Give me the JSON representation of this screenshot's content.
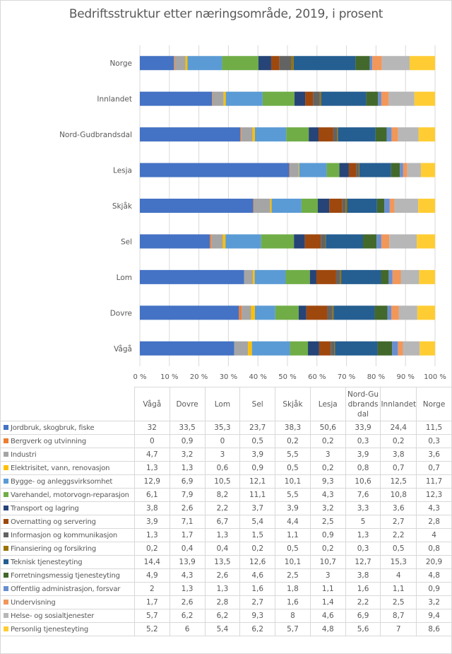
{
  "chart_data": {
    "type": "bar",
    "orientation": "horizontal",
    "stacked": "percent",
    "title": "Bedriftsstruktur etter næringsområde, 2019, i prosent",
    "xlabel": "",
    "ylabel": "",
    "xlim": [
      0,
      100
    ],
    "grid": true,
    "legend": "in-table",
    "x_ticks": [
      "0 %",
      "10 %",
      "20 %",
      "30 %",
      "40 %",
      "50 %",
      "60 %",
      "70 %",
      "80 %",
      "90 %",
      "100 %"
    ],
    "categories": [
      "Vågå",
      "Dovre",
      "Lom",
      "Sel",
      "Skjåk",
      "Lesja",
      "Nord-Gudbrandsdal",
      "Innlandet",
      "Norge"
    ],
    "table_headers": [
      "Vågå",
      "Dovre",
      "Lom",
      "Sel",
      "Skjåk",
      "Lesja",
      "Nord-Gudbrandsdal",
      "Innlandet",
      "Norge"
    ],
    "series": [
      {
        "name": "Jordbruk, skogbruk, fiske",
        "color": "#4472c4",
        "values": [
          32,
          33.5,
          35.3,
          23.7,
          38.3,
          50.6,
          33.9,
          24.4,
          11.5
        ],
        "labels": [
          "32",
          "33,5",
          "35,3",
          "23,7",
          "38,3",
          "50,6",
          "33,9",
          "24,4",
          "11,5"
        ]
      },
      {
        "name": "Bergverk og utvinning",
        "color": "#ed7d31",
        "values": [
          0,
          0.9,
          0,
          0.5,
          0.2,
          0.2,
          0.3,
          0.2,
          0.3
        ],
        "labels": [
          "0",
          "0,9",
          "0",
          "0,5",
          "0,2",
          "0,2",
          "0,3",
          "0,2",
          "0,3"
        ]
      },
      {
        "name": "Industri",
        "color": "#a5a5a5",
        "values": [
          4.7,
          3.2,
          3,
          3.9,
          5.5,
          3,
          3.9,
          3.8,
          3.6
        ],
        "labels": [
          "4,7",
          "3,2",
          "3",
          "3,9",
          "5,5",
          "3",
          "3,9",
          "3,8",
          "3,6"
        ]
      },
      {
        "name": "Elektrisitet, vann, renovasjon",
        "color": "#ffc000",
        "values": [
          1.3,
          1.3,
          0.6,
          0.9,
          0.5,
          0.2,
          0.8,
          0.7,
          0.7
        ],
        "labels": [
          "1,3",
          "1,3",
          "0,6",
          "0,9",
          "0,5",
          "0,2",
          "0,8",
          "0,7",
          "0,7"
        ]
      },
      {
        "name": "Bygge- og anleggsvirksomhet",
        "color": "#5b9bd5",
        "values": [
          12.9,
          6.9,
          10.5,
          12.1,
          10.1,
          9.3,
          10.6,
          12.5,
          11.7
        ],
        "labels": [
          "12,9",
          "6,9",
          "10,5",
          "12,1",
          "10,1",
          "9,3",
          "10,6",
          "12,5",
          "11,7"
        ]
      },
      {
        "name": "Varehandel, motorvogn-reparasjon",
        "color": "#70ad47",
        "values": [
          6.1,
          7.9,
          8.2,
          11.1,
          5.5,
          4.3,
          7.6,
          10.8,
          12.3
        ],
        "labels": [
          "6,1",
          "7,9",
          "8,2",
          "11,1",
          "5,5",
          "4,3",
          "7,6",
          "10,8",
          "12,3"
        ]
      },
      {
        "name": "Transport og lagring",
        "color": "#264478",
        "values": [
          3.8,
          2.6,
          2.2,
          3.7,
          3.9,
          3.2,
          3.3,
          3.6,
          4.3
        ],
        "labels": [
          "3,8",
          "2,6",
          "2,2",
          "3,7",
          "3,9",
          "3,2",
          "3,3",
          "3,6",
          "4,3"
        ]
      },
      {
        "name": "Overnatting og servering",
        "color": "#9e480e",
        "values": [
          3.9,
          7.1,
          6.7,
          5.4,
          4.4,
          2.5,
          5,
          2.7,
          2.8
        ],
        "labels": [
          "3,9",
          "7,1",
          "6,7",
          "5,4",
          "4,4",
          "2,5",
          "5",
          "2,7",
          "2,8"
        ]
      },
      {
        "name": "Informasjon og kommunikasjon",
        "color": "#636363",
        "values": [
          1.3,
          1.7,
          1.3,
          1.5,
          1.1,
          0.9,
          1.3,
          2.2,
          4
        ],
        "labels": [
          "1,3",
          "1,7",
          "1,3",
          "1,5",
          "1,1",
          "0,9",
          "1,3",
          "2,2",
          "4"
        ]
      },
      {
        "name": "Finansiering og forsikring",
        "color": "#997300",
        "values": [
          0.2,
          0.4,
          0.4,
          0.2,
          0.5,
          0.2,
          0.3,
          0.5,
          0.8
        ],
        "labels": [
          "0,2",
          "0,4",
          "0,4",
          "0,2",
          "0,5",
          "0,2",
          "0,3",
          "0,5",
          "0,8"
        ]
      },
      {
        "name": "Teknisk tjenesteyting",
        "color": "#255e91",
        "values": [
          14.4,
          13.9,
          13.5,
          12.6,
          10.1,
          10.7,
          12.7,
          15.3,
          20.9
        ],
        "labels": [
          "14,4",
          "13,9",
          "13,5",
          "12,6",
          "10,1",
          "10,7",
          "12,7",
          "15,3",
          "20,9"
        ]
      },
      {
        "name": "Forretningsmessig tjenesteyting",
        "color": "#43682b",
        "values": [
          4.9,
          4.3,
          2.6,
          4.6,
          2.5,
          3,
          3.8,
          4,
          4.8
        ],
        "labels": [
          "4,9",
          "4,3",
          "2,6",
          "4,6",
          "2,5",
          "3",
          "3,8",
          "4",
          "4,8"
        ]
      },
      {
        "name": "Offentlig administrasjon, forsvar",
        "color": "#698ed0",
        "values": [
          2,
          1.3,
          1.3,
          1.6,
          1.8,
          1.1,
          1.6,
          1.1,
          0.9
        ],
        "labels": [
          "2",
          "1,3",
          "1,3",
          "1,6",
          "1,8",
          "1,1",
          "1,6",
          "1,1",
          "0,9"
        ]
      },
      {
        "name": "Undervisning",
        "color": "#f1975a",
        "values": [
          1.7,
          2.6,
          2.8,
          2.7,
          1.6,
          1.4,
          2.2,
          2.5,
          3.2
        ],
        "labels": [
          "1,7",
          "2,6",
          "2,8",
          "2,7",
          "1,6",
          "1,4",
          "2,2",
          "2,5",
          "3,2"
        ]
      },
      {
        "name": "Helse- og sosialtjenester",
        "color": "#b7b7b7",
        "values": [
          5.7,
          6.2,
          6.2,
          9.3,
          8,
          4.6,
          6.9,
          8.7,
          9.4
        ],
        "labels": [
          "5,7",
          "6,2",
          "6,2",
          "9,3",
          "8",
          "4,6",
          "6,9",
          "8,7",
          "9,4"
        ]
      },
      {
        "name": "Personlig tjenesteyting",
        "color": "#ffcd33",
        "values": [
          5.2,
          6,
          5.4,
          6.2,
          5.7,
          4.8,
          5.6,
          7,
          8.6
        ],
        "labels": [
          "5,2",
          "6",
          "5,4",
          "6,2",
          "5,7",
          "4,8",
          "5,6",
          "7",
          "8,6"
        ]
      }
    ]
  }
}
